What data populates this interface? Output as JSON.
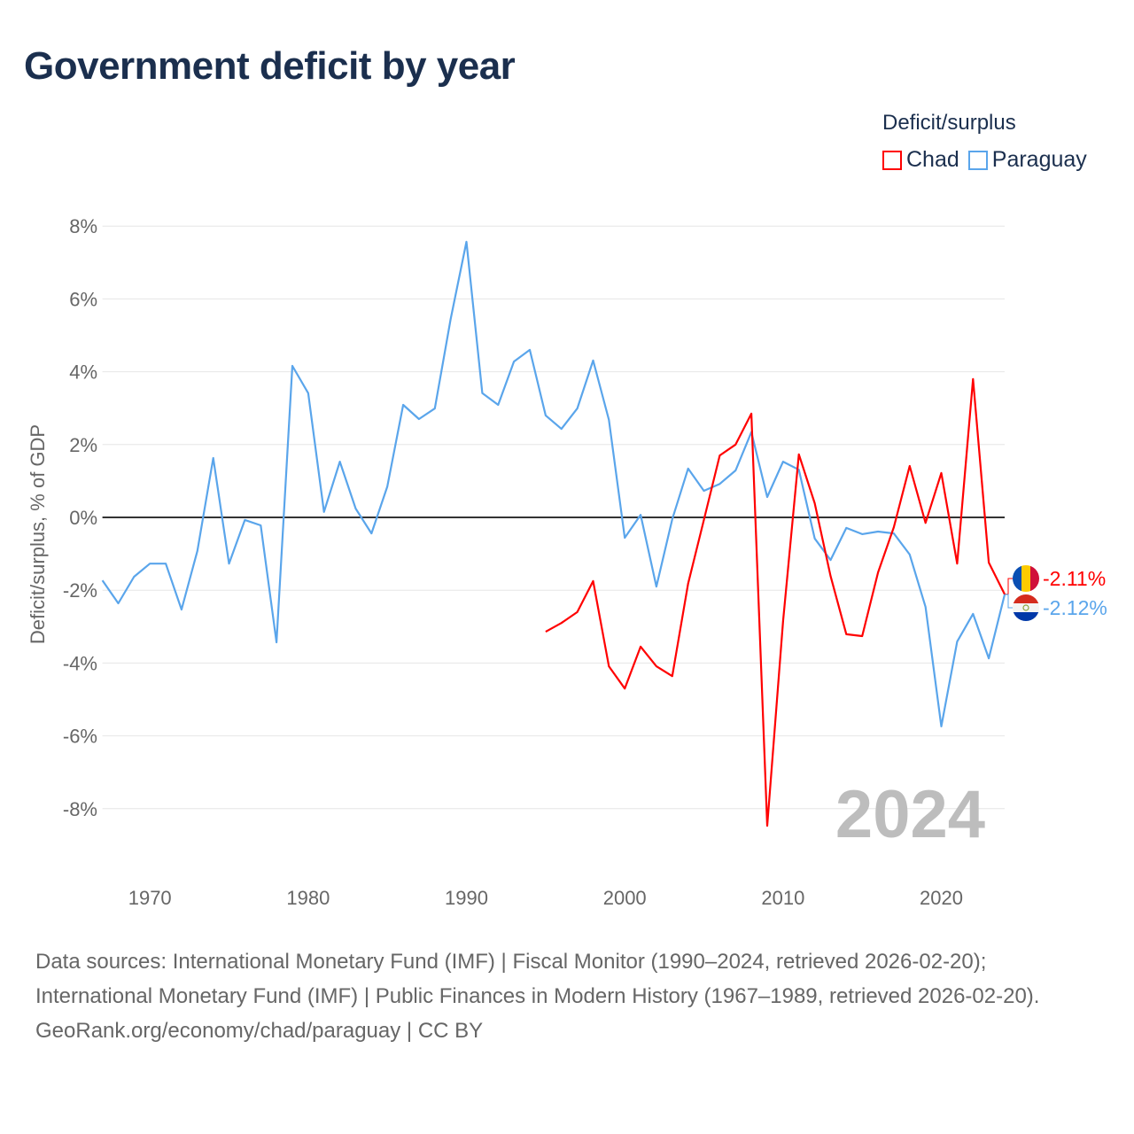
{
  "title": "Government deficit by year",
  "legend": {
    "title": "Deficit/surplus",
    "items": [
      {
        "label": "Chad",
        "color": "#ff0000"
      },
      {
        "label": "Paraguay",
        "color": "#5aa5eb"
      }
    ]
  },
  "footer": {
    "sources": "Data sources: International Monetary Fund (IMF) | Fiscal Monitor (1990–2024, retrieved 2026-02-20); International Monetary Fund (IMF) | Public Finances in Modern History (1967–1989, retrieved 2026-02-20).",
    "credit": "GeoRank.org/economy/chad/paraguay | CC BY"
  },
  "chart_data": {
    "type": "line",
    "title": "Government deficit by year",
    "xlabel": "",
    "ylabel": "Deficit/surplus, % of GDP",
    "xlim": [
      1967,
      2024
    ],
    "ylim": [
      -10,
      8.5
    ],
    "yticks": [
      8,
      6,
      4,
      2,
      0,
      -2,
      -4,
      -6,
      -8
    ],
    "ytick_labels": [
      "8%",
      "6%",
      "4%",
      "2%",
      "0%",
      "-2%",
      "-4%",
      "-6%",
      "-8%"
    ],
    "xticks": [
      1970,
      1980,
      1990,
      2000,
      2010,
      2020
    ],
    "xtick_labels": [
      "1970",
      "1980",
      "1990",
      "2000",
      "2010",
      "2020"
    ],
    "grid": true,
    "legend_position": "top-right",
    "year_annotation": "2024",
    "series": [
      {
        "name": "Chad",
        "color": "#ff0000",
        "end_label": "-2.11%",
        "flag": "chad",
        "x": [
          1995,
          1996,
          1997,
          1998,
          1999,
          2000,
          2001,
          2002,
          2003,
          2004,
          2005,
          2006,
          2007,
          2008,
          2009,
          2010,
          2011,
          2012,
          2013,
          2014,
          2015,
          2016,
          2017,
          2018,
          2019,
          2020,
          2021,
          2022,
          2023,
          2024
        ],
        "values": [
          -3.14,
          -2.9,
          -2.6,
          -1.75,
          -4.09,
          -4.7,
          -3.55,
          -4.09,
          -4.36,
          -1.82,
          -0.07,
          1.7,
          2.0,
          2.85,
          -8.47,
          -2.85,
          1.73,
          0.39,
          -1.61,
          -3.21,
          -3.26,
          -1.51,
          -0.27,
          1.41,
          -0.15,
          1.22,
          -1.27,
          3.8,
          -1.24,
          -2.11
        ]
      },
      {
        "name": "Paraguay",
        "color": "#5aa5eb",
        "end_label": "-2.12%",
        "flag": "paraguay",
        "x": [
          1967,
          1968,
          1969,
          1970,
          1971,
          1972,
          1973,
          1974,
          1975,
          1976,
          1977,
          1978,
          1979,
          1980,
          1981,
          1982,
          1983,
          1984,
          1985,
          1986,
          1987,
          1988,
          1989,
          1990,
          1991,
          1992,
          1993,
          1994,
          1995,
          1996,
          1997,
          1998,
          1999,
          2000,
          2001,
          2002,
          2003,
          2004,
          2005,
          2006,
          2007,
          2008,
          2009,
          2010,
          2011,
          2012,
          2013,
          2014,
          2015,
          2016,
          2017,
          2018,
          2019,
          2020,
          2021,
          2022,
          2023,
          2024
        ],
        "values": [
          -1.73,
          -2.36,
          -1.63,
          -1.27,
          -1.27,
          -2.53,
          -0.92,
          1.63,
          -1.27,
          -0.07,
          -0.22,
          -3.43,
          4.16,
          3.41,
          0.15,
          1.53,
          0.24,
          -0.44,
          0.85,
          3.09,
          2.7,
          2.99,
          5.45,
          7.57,
          3.41,
          3.09,
          4.28,
          4.6,
          2.8,
          2.43,
          2.99,
          4.31,
          2.68,
          -0.56,
          0.07,
          -1.9,
          -0.05,
          1.34,
          0.73,
          0.92,
          1.29,
          2.34,
          0.56,
          1.53,
          1.31,
          -0.58,
          -1.17,
          -0.29,
          -0.46,
          -0.39,
          -0.44,
          -1.02,
          -2.46,
          -5.74,
          -3.41,
          -2.65,
          -3.87,
          -2.12
        ]
      }
    ]
  }
}
